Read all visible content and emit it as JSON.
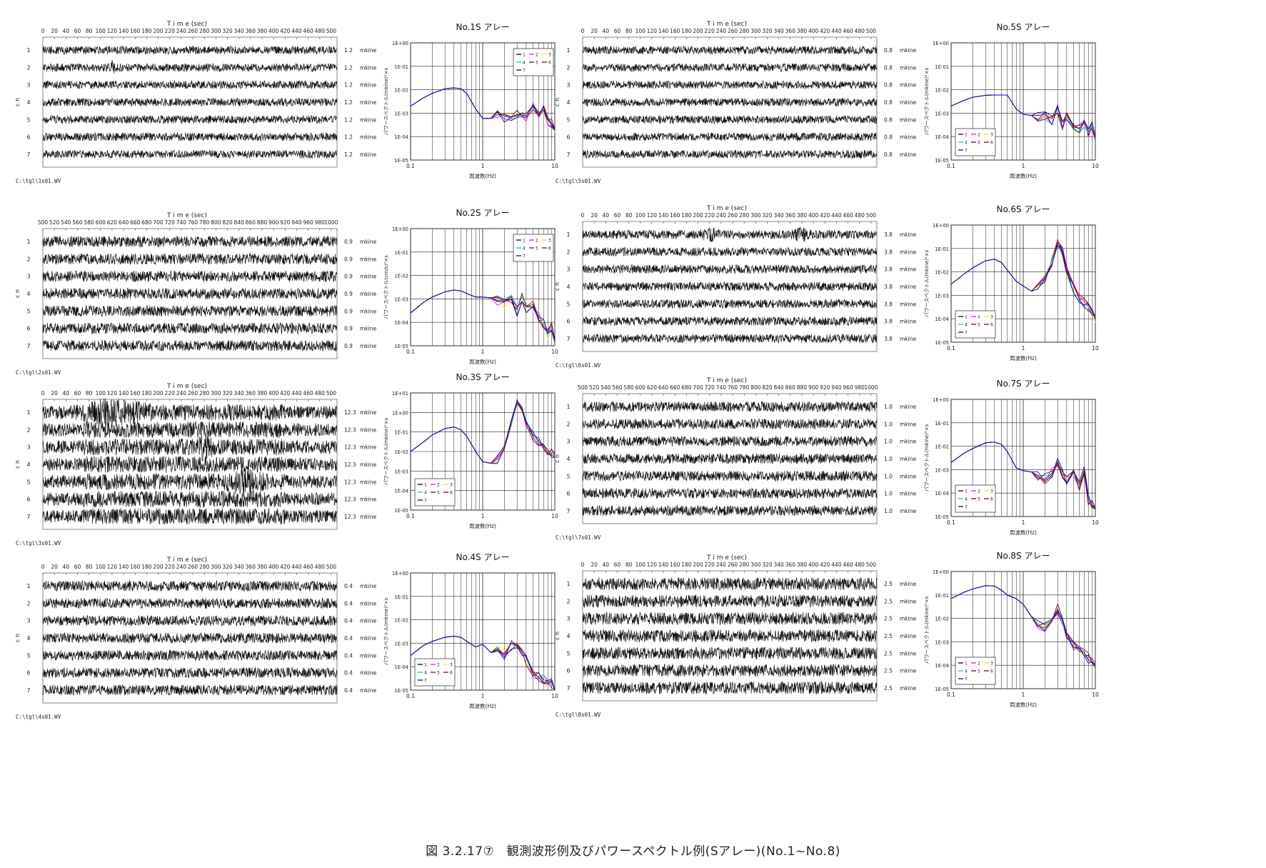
{
  "caption": "図 3.2.17⑦　観測波形例及びパワースペクトル例(Sアレー)(No.1~No.8)",
  "common": {
    "time_axis_title": "T i m e (sec)",
    "channel_axis_title": "c h",
    "unit": "mkine",
    "spectrum_xlabel": "周波数(Hz)",
    "legend_labels": [
      "1",
      "2",
      "3",
      "4",
      "5",
      "6",
      "7"
    ],
    "colors": {
      "1": "#111111",
      "2": "#ff00ff",
      "3": "#eeee00",
      "4": "#00cccc",
      "5": "#660066",
      "6": "#990000",
      "7": "#0000cc"
    }
  },
  "chart_data": [
    {
      "type": "line",
      "id": "wave-1",
      "title": "T i m e (sec)",
      "xlabel": "T i m e (sec)",
      "ylabel": "c h",
      "xlim": [
        0,
        510
      ],
      "x_ticks": [
        "0",
        "20",
        "40",
        "60",
        "80",
        "100",
        "120",
        "140",
        "160",
        "180",
        "200",
        "220",
        "240",
        "260",
        "280",
        "300",
        "320",
        "340",
        "360",
        "380",
        "400",
        "420",
        "440",
        "460",
        "480",
        "500"
      ],
      "channels": [
        "1",
        "2",
        "3",
        "4",
        "5",
        "6",
        "7"
      ],
      "scale_label": "1.2",
      "unit": "mkine",
      "filename": "C:\\tgl\\1s01.WV"
    },
    {
      "type": "line",
      "id": "spec-1",
      "title": "No.1S アレー",
      "xlabel": "周波数(Hz)",
      "ylabel": "パワースペクトル(mkine)²×s",
      "xscale": "log",
      "yscale": "log",
      "xlim": [
        0.1,
        10
      ],
      "ylim": [
        "1E-05",
        "1E+00"
      ],
      "x_ticks": [
        "0.1",
        "1",
        "10"
      ],
      "y_ticks": [
        "1E+00",
        "1E-01",
        "1E-02",
        "1E-03",
        "1E-04",
        "1E-05"
      ],
      "legend_position": "top-right",
      "curve": {
        "freq": [
          0.1,
          0.15,
          0.2,
          0.3,
          0.4,
          0.5,
          0.6,
          0.8,
          1.0,
          1.3,
          1.6,
          2.0,
          2.5,
          3.0,
          3.5,
          4.0,
          5.0,
          6.0,
          7.0,
          8.0,
          9.0,
          10.0
        ],
        "power": [
          0.002,
          0.0045,
          0.007,
          0.011,
          0.012,
          0.011,
          0.007,
          0.0015,
          0.0006,
          0.0006,
          0.0008,
          0.0007,
          0.0006,
          0.0009,
          0.0008,
          0.0006,
          0.002,
          0.0008,
          0.0015,
          0.0005,
          0.0004,
          0.0002
        ]
      }
    },
    {
      "type": "line",
      "id": "wave-5",
      "title": "T i m e (sec)",
      "xlabel": "T i m e (sec)",
      "ylabel": "c h",
      "xlim": [
        0,
        510
      ],
      "x_ticks": [
        "0",
        "20",
        "40",
        "60",
        "80",
        "100",
        "120",
        "140",
        "160",
        "180",
        "200",
        "220",
        "240",
        "260",
        "280",
        "300",
        "320",
        "340",
        "360",
        "380",
        "400",
        "420",
        "440",
        "460",
        "480",
        "500"
      ],
      "channels": [
        "1",
        "2",
        "3",
        "4",
        "5",
        "6",
        "7"
      ],
      "scale_label": "0.8",
      "unit": "mkine",
      "filename": "C:\\tgl\\5s01.WV"
    },
    {
      "type": "line",
      "id": "spec-5",
      "title": "No.5S アレー",
      "xlabel": "周波数(Hz)",
      "ylabel": "パワースペクトル(mkine)²×s",
      "xscale": "log",
      "yscale": "log",
      "xlim": [
        0.1,
        10
      ],
      "ylim": [
        "1E-05",
        "1E+00"
      ],
      "x_ticks": [
        "0.1",
        "1",
        "10"
      ],
      "y_ticks": [
        "1E+00",
        "1E-01",
        "1E-02",
        "1E-03",
        "1E-04",
        "1E-05"
      ],
      "legend_position": "bottom-left",
      "curve": {
        "freq": [
          0.1,
          0.15,
          0.2,
          0.3,
          0.4,
          0.5,
          0.6,
          0.8,
          1.0,
          1.3,
          1.6,
          2.0,
          2.5,
          3.0,
          3.5,
          4.0,
          5.0,
          6.0,
          7.0,
          8.0,
          9.0,
          10.0
        ],
        "power": [
          0.002,
          0.0035,
          0.0048,
          0.0058,
          0.006,
          0.006,
          0.006,
          0.0015,
          0.0009,
          0.0008,
          0.0007,
          0.0008,
          0.0005,
          0.0015,
          0.0003,
          0.0007,
          0.00025,
          0.0002,
          0.0004,
          0.00015,
          0.0003,
          0.0001
        ]
      }
    },
    {
      "type": "line",
      "id": "wave-2",
      "title": "T i m e (sec)",
      "xlabel": "T i m e (sec)",
      "ylabel": "c h",
      "xlim": [
        500,
        1010
      ],
      "x_ticks": [
        "500",
        "520",
        "540",
        "560",
        "580",
        "600",
        "620",
        "640",
        "660",
        "680",
        "700",
        "720",
        "740",
        "760",
        "780",
        "800",
        "820",
        "840",
        "860",
        "880",
        "900",
        "920",
        "940",
        "960",
        "980",
        "1000"
      ],
      "channels": [
        "1",
        "2",
        "3",
        "4",
        "5",
        "6",
        "7"
      ],
      "scale_label": "0.9",
      "unit": "mkine",
      "filename": "C:\\tgl\\2s01.WV"
    },
    {
      "type": "line",
      "id": "spec-2",
      "title": "No.2S アレー",
      "xlabel": "周波数(Hz)",
      "ylabel": "パワースペクトル(cm/s)²×s",
      "xscale": "log",
      "yscale": "log",
      "xlim": [
        0.1,
        10
      ],
      "ylim": [
        "1E-05",
        "1E+00"
      ],
      "x_ticks": [
        "0.1",
        "1",
        "10"
      ],
      "y_ticks": [
        "1E+00",
        "1E-01",
        "1E-02",
        "1E-03",
        "1E-04",
        "1E-05"
      ],
      "legend_position": "top-right",
      "curve": {
        "freq": [
          0.1,
          0.15,
          0.2,
          0.3,
          0.4,
          0.5,
          0.6,
          0.8,
          1.0,
          1.3,
          1.6,
          2.0,
          2.5,
          3.0,
          3.5,
          4.0,
          5.0,
          6.0,
          7.0,
          8.0,
          9.0,
          10.0
        ],
        "power": [
          0.00025,
          0.0007,
          0.0012,
          0.002,
          0.0024,
          0.0022,
          0.0017,
          0.0012,
          0.0012,
          0.0011,
          0.0009,
          0.0006,
          0.001,
          0.0003,
          0.0012,
          0.0004,
          0.0006,
          0.00015,
          8e-05,
          3e-05,
          6e-05,
          2e-05
        ]
      }
    },
    {
      "type": "line",
      "id": "wave-6",
      "title": "T i m e (sec)",
      "xlabel": "T i m e (sec)",
      "ylabel": "c h",
      "xlim": [
        0,
        510
      ],
      "x_ticks": [
        "0",
        "20",
        "40",
        "60",
        "80",
        "100",
        "120",
        "140",
        "160",
        "180",
        "200",
        "220",
        "240",
        "260",
        "280",
        "300",
        "320",
        "340",
        "360",
        "380",
        "400",
        "420",
        "440",
        "460",
        "480",
        "500"
      ],
      "channels": [
        "1",
        "2",
        "3",
        "4",
        "5",
        "6",
        "7"
      ],
      "scale_label": "3.8",
      "unit": "mkine",
      "filename": "C:\\tgl\\6s01.WV"
    },
    {
      "type": "line",
      "id": "spec-6",
      "title": "No.6S アレー",
      "xlabel": "周波数(Hz)",
      "ylabel": "パワースペクトル(mkine)²×s",
      "xscale": "log",
      "yscale": "log",
      "xlim": [
        0.1,
        10
      ],
      "ylim": [
        "1E-05",
        "1E+00"
      ],
      "x_ticks": [
        "0.1",
        "1",
        "10"
      ],
      "y_ticks": [
        "1E+00",
        "1E-01",
        "1E-02",
        "1E-03",
        "1E-04",
        "1E-05"
      ],
      "legend_position": "bottom-left",
      "curve": {
        "freq": [
          0.1,
          0.15,
          0.2,
          0.3,
          0.4,
          0.5,
          0.6,
          0.8,
          1.0,
          1.3,
          1.6,
          2.0,
          2.5,
          3.0,
          3.5,
          4.0,
          5.0,
          6.0,
          7.0,
          8.0,
          9.0,
          10.0
        ],
        "power": [
          0.003,
          0.008,
          0.015,
          0.03,
          0.035,
          0.025,
          0.012,
          0.004,
          0.0025,
          0.0015,
          0.002,
          0.005,
          0.03,
          0.17,
          0.08,
          0.01,
          0.002,
          0.0008,
          0.0005,
          0.0003,
          0.0002,
          0.0001
        ]
      }
    },
    {
      "type": "line",
      "id": "wave-3",
      "title": "T i m e (sec)",
      "xlabel": "T i m e (sec)",
      "ylabel": "c h",
      "xlim": [
        0,
        510
      ],
      "x_ticks": [
        "0",
        "20",
        "40",
        "60",
        "80",
        "100",
        "120",
        "140",
        "160",
        "180",
        "200",
        "220",
        "240",
        "260",
        "280",
        "300",
        "320",
        "340",
        "360",
        "380",
        "400",
        "420",
        "440",
        "460",
        "480",
        "500"
      ],
      "channels": [
        "1",
        "2",
        "3",
        "4",
        "5",
        "6",
        "7"
      ],
      "scale_label": "12.3",
      "unit": "mkine",
      "filename": "C:\\tgl\\3s01.WV"
    },
    {
      "type": "line",
      "id": "spec-3",
      "title": "No.3S アレー",
      "xlabel": "周波数(Hz)",
      "ylabel": "パワースペクトル(mkine)²×s",
      "xscale": "log",
      "yscale": "log",
      "xlim": [
        0.1,
        10
      ],
      "ylim": [
        "1E-05",
        "1E+01"
      ],
      "x_ticks": [
        "0.1",
        "1",
        "10"
      ],
      "y_ticks": [
        "1E+01",
        "1E+00",
        "1E-01",
        "1E-02",
        "1E-03",
        "1E-04",
        "1E-05"
      ],
      "legend_position": "bottom-left",
      "curve": {
        "freq": [
          0.1,
          0.15,
          0.2,
          0.3,
          0.4,
          0.5,
          0.6,
          0.8,
          1.0,
          1.3,
          1.6,
          2.0,
          2.5,
          3.0,
          3.5,
          4.0,
          5.0,
          6.0,
          7.0,
          8.0,
          9.0,
          10.0
        ],
        "power": [
          0.01,
          0.03,
          0.07,
          0.15,
          0.18,
          0.13,
          0.06,
          0.01,
          0.003,
          0.0025,
          0.004,
          0.02,
          0.3,
          3.5,
          1.5,
          0.3,
          0.06,
          0.03,
          0.02,
          0.01,
          0.008,
          0.005
        ]
      }
    },
    {
      "type": "line",
      "id": "wave-7",
      "title": "T i m e (sec)",
      "xlabel": "T i m e (sec)",
      "ylabel": "c h",
      "xlim": [
        500,
        1010
      ],
      "x_ticks": [
        "500",
        "520",
        "540",
        "560",
        "580",
        "600",
        "620",
        "640",
        "660",
        "680",
        "700",
        "720",
        "740",
        "760",
        "780",
        "800",
        "820",
        "840",
        "860",
        "880",
        "900",
        "920",
        "940",
        "960",
        "980",
        "1000"
      ],
      "channels": [
        "1",
        "2",
        "3",
        "4",
        "5",
        "6",
        "7"
      ],
      "scale_label": "1.0",
      "unit": "mkine",
      "filename": "C:\\tgl\\7s01.WV"
    },
    {
      "type": "line",
      "id": "spec-7",
      "title": "No.7S アレー",
      "xlabel": "周波数(Hz)",
      "ylabel": "パワースペクトル(mkine)²×s",
      "xscale": "log",
      "yscale": "log",
      "xlim": [
        0.1,
        10
      ],
      "ylim": [
        "1E-05",
        "1E+00"
      ],
      "x_ticks": [
        "0.1",
        "1",
        "10"
      ],
      "y_ticks": [
        "1E+00",
        "1E-01",
        "1E-02",
        "1E-03",
        "1E-04",
        "1E-05"
      ],
      "legend_position": "bottom-left",
      "curve": {
        "freq": [
          0.1,
          0.15,
          0.2,
          0.3,
          0.4,
          0.5,
          0.6,
          0.8,
          1.0,
          1.3,
          1.6,
          2.0,
          2.5,
          3.0,
          3.5,
          4.0,
          5.0,
          6.0,
          7.0,
          8.0,
          9.0,
          10.0
        ],
        "power": [
          0.002,
          0.005,
          0.008,
          0.014,
          0.015,
          0.012,
          0.006,
          0.0012,
          0.0009,
          0.0008,
          0.0005,
          0.0004,
          0.0007,
          0.002,
          0.0006,
          0.0004,
          0.0006,
          0.0002,
          0.001,
          5e-05,
          3e-05,
          2e-05
        ]
      }
    },
    {
      "type": "line",
      "id": "wave-4",
      "title": "T i m e (sec)",
      "xlabel": "T i m e (sec)",
      "ylabel": "c h",
      "xlim": [
        0,
        510
      ],
      "x_ticks": [
        "0",
        "20",
        "40",
        "60",
        "80",
        "100",
        "120",
        "140",
        "160",
        "180",
        "200",
        "220",
        "240",
        "260",
        "280",
        "300",
        "320",
        "340",
        "360",
        "380",
        "400",
        "420",
        "440",
        "460",
        "480",
        "500"
      ],
      "channels": [
        "1",
        "2",
        "3",
        "4",
        "5",
        "6",
        "7"
      ],
      "scale_label": "0.4",
      "unit": "mkine",
      "filename": "C:\\tgl\\4s01.WV"
    },
    {
      "type": "line",
      "id": "spec-4",
      "title": "No.4S アレー",
      "xlabel": "周波数(Hz)",
      "ylabel": "パワースペクトル(mkine)²×s",
      "xscale": "log",
      "yscale": "log",
      "xlim": [
        0.1,
        10
      ],
      "ylim": [
        "1E-05",
        "1E+00"
      ],
      "x_ticks": [
        "0.1",
        "1",
        "10"
      ],
      "y_ticks": [
        "1E+00",
        "1E-01",
        "1E-02",
        "1E-03",
        "1E-04",
        "1E-05"
      ],
      "legend_position": "bottom-left",
      "curve": {
        "freq": [
          0.1,
          0.15,
          0.2,
          0.3,
          0.4,
          0.5,
          0.6,
          0.8,
          1.0,
          1.3,
          1.6,
          2.0,
          2.5,
          3.0,
          3.5,
          4.0,
          5.0,
          6.0,
          7.0,
          8.0,
          9.0,
          10.0
        ],
        "power": [
          0.0003,
          0.0008,
          0.0012,
          0.0018,
          0.002,
          0.0018,
          0.0012,
          0.0007,
          0.0009,
          0.0004,
          0.0006,
          0.0003,
          0.0008,
          0.001,
          0.0004,
          0.0002,
          5e-05,
          4e-05,
          3e-05,
          2e-05,
          2e-05,
          1e-05
        ]
      }
    },
    {
      "type": "line",
      "id": "wave-8",
      "title": "T i m e (sec)",
      "xlabel": "T i m e (sec)",
      "ylabel": "c h",
      "xlim": [
        0,
        510
      ],
      "x_ticks": [
        "0",
        "20",
        "40",
        "60",
        "80",
        "100",
        "120",
        "140",
        "160",
        "180",
        "200",
        "220",
        "240",
        "260",
        "280",
        "300",
        "320",
        "340",
        "360",
        "380",
        "400",
        "420",
        "440",
        "460",
        "480",
        "500"
      ],
      "channels": [
        "1",
        "2",
        "3",
        "4",
        "5",
        "6",
        "7"
      ],
      "scale_label": "2.5",
      "unit": "mkine",
      "filename": "C:\\tgl\\8s01.WV"
    },
    {
      "type": "line",
      "id": "spec-8",
      "title": "No.8S アレー",
      "xlabel": "周波数(Hz)",
      "ylabel": "パワースペクトル(mkine)²×s",
      "xscale": "log",
      "yscale": "log",
      "xlim": [
        0.1,
        10
      ],
      "ylim": [
        "1E-05",
        "1E+00"
      ],
      "x_ticks": [
        "0.1",
        "1",
        "10"
      ],
      "y_ticks": [
        "1E+00",
        "1E-01",
        "1E-02",
        "1E-03",
        "1E-04",
        "1E-05"
      ],
      "legend_position": "bottom-left",
      "curve": {
        "freq": [
          0.1,
          0.15,
          0.2,
          0.3,
          0.4,
          0.5,
          0.6,
          0.8,
          1.0,
          1.3,
          1.6,
          2.0,
          2.5,
          3.0,
          3.5,
          4.0,
          5.0,
          6.0,
          7.0,
          8.0,
          9.0,
          10.0
        ],
        "power": [
          0.07,
          0.13,
          0.18,
          0.25,
          0.24,
          0.16,
          0.1,
          0.07,
          0.04,
          0.012,
          0.005,
          0.004,
          0.01,
          0.025,
          0.008,
          0.002,
          0.0006,
          0.0004,
          0.0003,
          0.0002,
          0.00015,
          0.0001
        ]
      }
    }
  ]
}
